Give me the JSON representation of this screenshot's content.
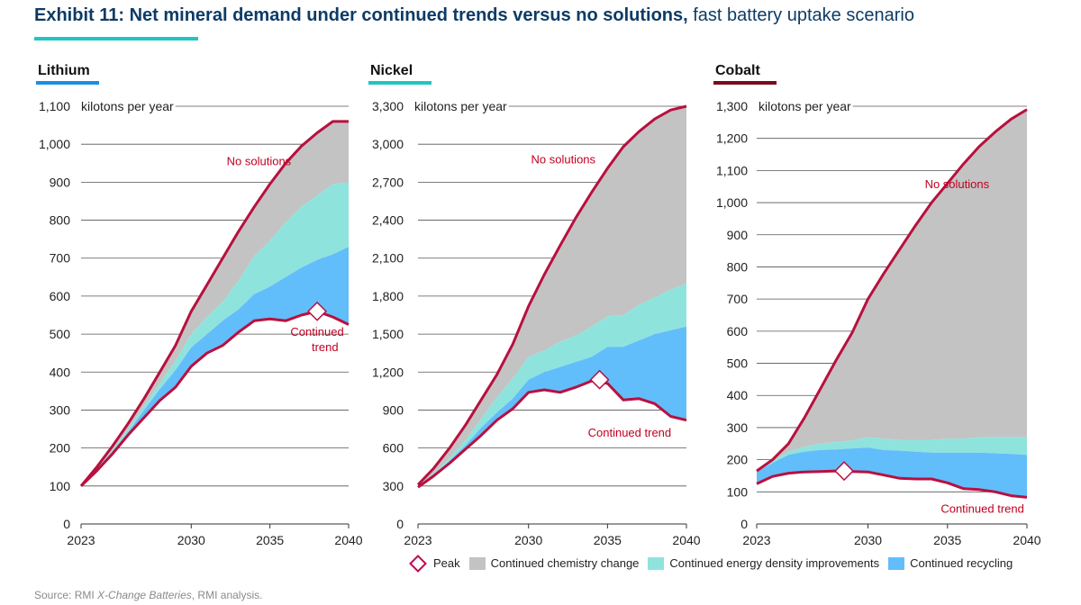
{
  "title": {
    "bold": "Exhibit 11: Net mineral demand under continued trends versus no solutions,",
    "normal": " fast battery uptake scenario"
  },
  "colors": {
    "chemistry": "#c3c3c3",
    "density": "#8fe3dd",
    "recycling": "#62bdfb",
    "line": "#b8103f",
    "lithium_accent": "#1a8fe3",
    "nickel_accent": "#1fc6c1",
    "cobalt_accent": "#7a0a1e",
    "text": "#222222",
    "label_red": "#c00020"
  },
  "legend": {
    "peak": "Peak",
    "chemistry": "Continued chemistry change",
    "density": "Continued energy density improvements",
    "recycling": "Continued recycling"
  },
  "source": {
    "prefix": "Source: RMI ",
    "italic": "X-Change Batteries",
    "suffix": ", RMI analysis."
  },
  "chart_data": [
    {
      "type": "area",
      "title": "Lithium",
      "accent": "lithium_accent",
      "unit_label": "kilotons per year",
      "ylim": [
        0,
        1100
      ],
      "yticks": [
        0,
        100,
        200,
        300,
        400,
        500,
        600,
        700,
        800,
        900,
        1000,
        1100
      ],
      "xlim": [
        2023,
        2040
      ],
      "xticks": [
        2023,
        2030,
        2035,
        2040
      ],
      "x": [
        2023,
        2024,
        2025,
        2026,
        2027,
        2028,
        2029,
        2030,
        2031,
        2032,
        2033,
        2034,
        2035,
        2036,
        2037,
        2038,
        2039,
        2040
      ],
      "series": [
        {
          "name": "No solutions",
          "values": [
            100,
            150,
            205,
            265,
            330,
            400,
            470,
            560,
            630,
            700,
            770,
            835,
            895,
            950,
            995,
            1030,
            1060,
            1060
          ]
        },
        {
          "name": "After continued chemistry change",
          "values": [
            100,
            145,
            195,
            250,
            310,
            370,
            430,
            500,
            545,
            585,
            640,
            705,
            745,
            795,
            835,
            865,
            895,
            900
          ]
        },
        {
          "name": "After continued energy density improvements",
          "values": [
            100,
            143,
            190,
            243,
            300,
            355,
            405,
            465,
            500,
            535,
            565,
            605,
            625,
            650,
            675,
            695,
            710,
            730
          ]
        },
        {
          "name": "Continued trend",
          "values": [
            100,
            140,
            185,
            235,
            280,
            325,
            360,
            415,
            450,
            470,
            505,
            535,
            540,
            535,
            550,
            560,
            545,
            525
          ]
        }
      ],
      "peak": {
        "x": 2038,
        "y": 560
      },
      "annotations": [
        {
          "text": "No solutions",
          "x": 2034.3,
          "y": 945,
          "anchor": "middle"
        },
        {
          "text": "Continued",
          "x": 2038,
          "y": 495,
          "anchor": "middle"
        },
        {
          "text": "trend",
          "x": 2038.5,
          "y": 455,
          "anchor": "middle"
        }
      ]
    },
    {
      "type": "area",
      "title": "Nickel",
      "accent": "nickel_accent",
      "unit_label": "kilotons per year",
      "ylim": [
        0,
        3300
      ],
      "yticks": [
        0,
        300,
        600,
        900,
        1200,
        1500,
        1800,
        2100,
        2400,
        2700,
        3000,
        3300
      ],
      "xlim": [
        2023,
        2040
      ],
      "xticks": [
        2023,
        2030,
        2035,
        2040
      ],
      "x": [
        2023,
        2024,
        2025,
        2026,
        2027,
        2028,
        2029,
        2030,
        2031,
        2032,
        2033,
        2034,
        2035,
        2036,
        2037,
        2038,
        2039,
        2040
      ],
      "series": [
        {
          "name": "No solutions",
          "values": [
            310,
            440,
            600,
            780,
            980,
            1180,
            1420,
            1720,
            1970,
            2200,
            2420,
            2620,
            2810,
            2980,
            3100,
            3200,
            3270,
            3300
          ]
        },
        {
          "name": "After continued chemistry change",
          "values": [
            300,
            400,
            520,
            660,
            830,
            1000,
            1150,
            1320,
            1370,
            1440,
            1490,
            1560,
            1640,
            1650,
            1730,
            1790,
            1850,
            1900
          ]
        },
        {
          "name": "After continued energy density improvements",
          "values": [
            300,
            390,
            500,
            620,
            760,
            880,
            990,
            1140,
            1200,
            1240,
            1280,
            1320,
            1400,
            1400,
            1450,
            1500,
            1530,
            1560
          ]
        },
        {
          "name": "Continued trend",
          "values": [
            290,
            380,
            480,
            590,
            700,
            820,
            910,
            1040,
            1060,
            1040,
            1080,
            1130,
            1110,
            980,
            990,
            950,
            850,
            820
          ]
        }
      ],
      "peak": {
        "x": 2034.5,
        "y": 1140
      },
      "annotations": [
        {
          "text": "No solutions",
          "x": 2032.2,
          "y": 2850,
          "anchor": "middle"
        },
        {
          "text": "Continued trend",
          "x": 2036.4,
          "y": 690,
          "anchor": "middle"
        }
      ]
    },
    {
      "type": "area",
      "title": "Cobalt",
      "accent": "cobalt_accent",
      "unit_label": "kilotons per year",
      "ylim": [
        0,
        1300
      ],
      "yticks": [
        0,
        100,
        200,
        300,
        400,
        500,
        600,
        700,
        800,
        900,
        1000,
        1100,
        1200,
        1300
      ],
      "xlim": [
        2023,
        2040
      ],
      "xticks": [
        2023,
        2030,
        2035,
        2040
      ],
      "x": [
        2023,
        2024,
        2025,
        2026,
        2027,
        2028,
        2029,
        2030,
        2031,
        2032,
        2033,
        2034,
        2035,
        2036,
        2037,
        2038,
        2039,
        2040
      ],
      "series": [
        {
          "name": "No solutions",
          "values": [
            165,
            200,
            250,
            330,
            420,
            510,
            595,
            700,
            780,
            855,
            930,
            1000,
            1060,
            1120,
            1175,
            1220,
            1260,
            1290
          ]
        },
        {
          "name": "After continued chemistry change",
          "values": [
            165,
            195,
            225,
            240,
            250,
            255,
            260,
            270,
            265,
            262,
            262,
            262,
            265,
            265,
            270,
            270,
            270,
            270
          ]
        },
        {
          "name": "After continued energy density improvements",
          "values": [
            162,
            190,
            215,
            225,
            230,
            232,
            235,
            238,
            230,
            228,
            225,
            222,
            222,
            222,
            222,
            220,
            218,
            215
          ]
        },
        {
          "name": "Continued trend",
          "values": [
            125,
            148,
            158,
            162,
            163,
            165,
            163,
            162,
            152,
            142,
            140,
            140,
            128,
            110,
            107,
            100,
            88,
            83
          ]
        }
      ],
      "peak": {
        "x": 2028.5,
        "y": 165
      },
      "annotations": [
        {
          "text": "No solutions",
          "x": 2035.6,
          "y": 1045,
          "anchor": "middle"
        },
        {
          "text": "Continued trend",
          "x": 2037.2,
          "y": 35,
          "anchor": "middle"
        }
      ]
    }
  ]
}
